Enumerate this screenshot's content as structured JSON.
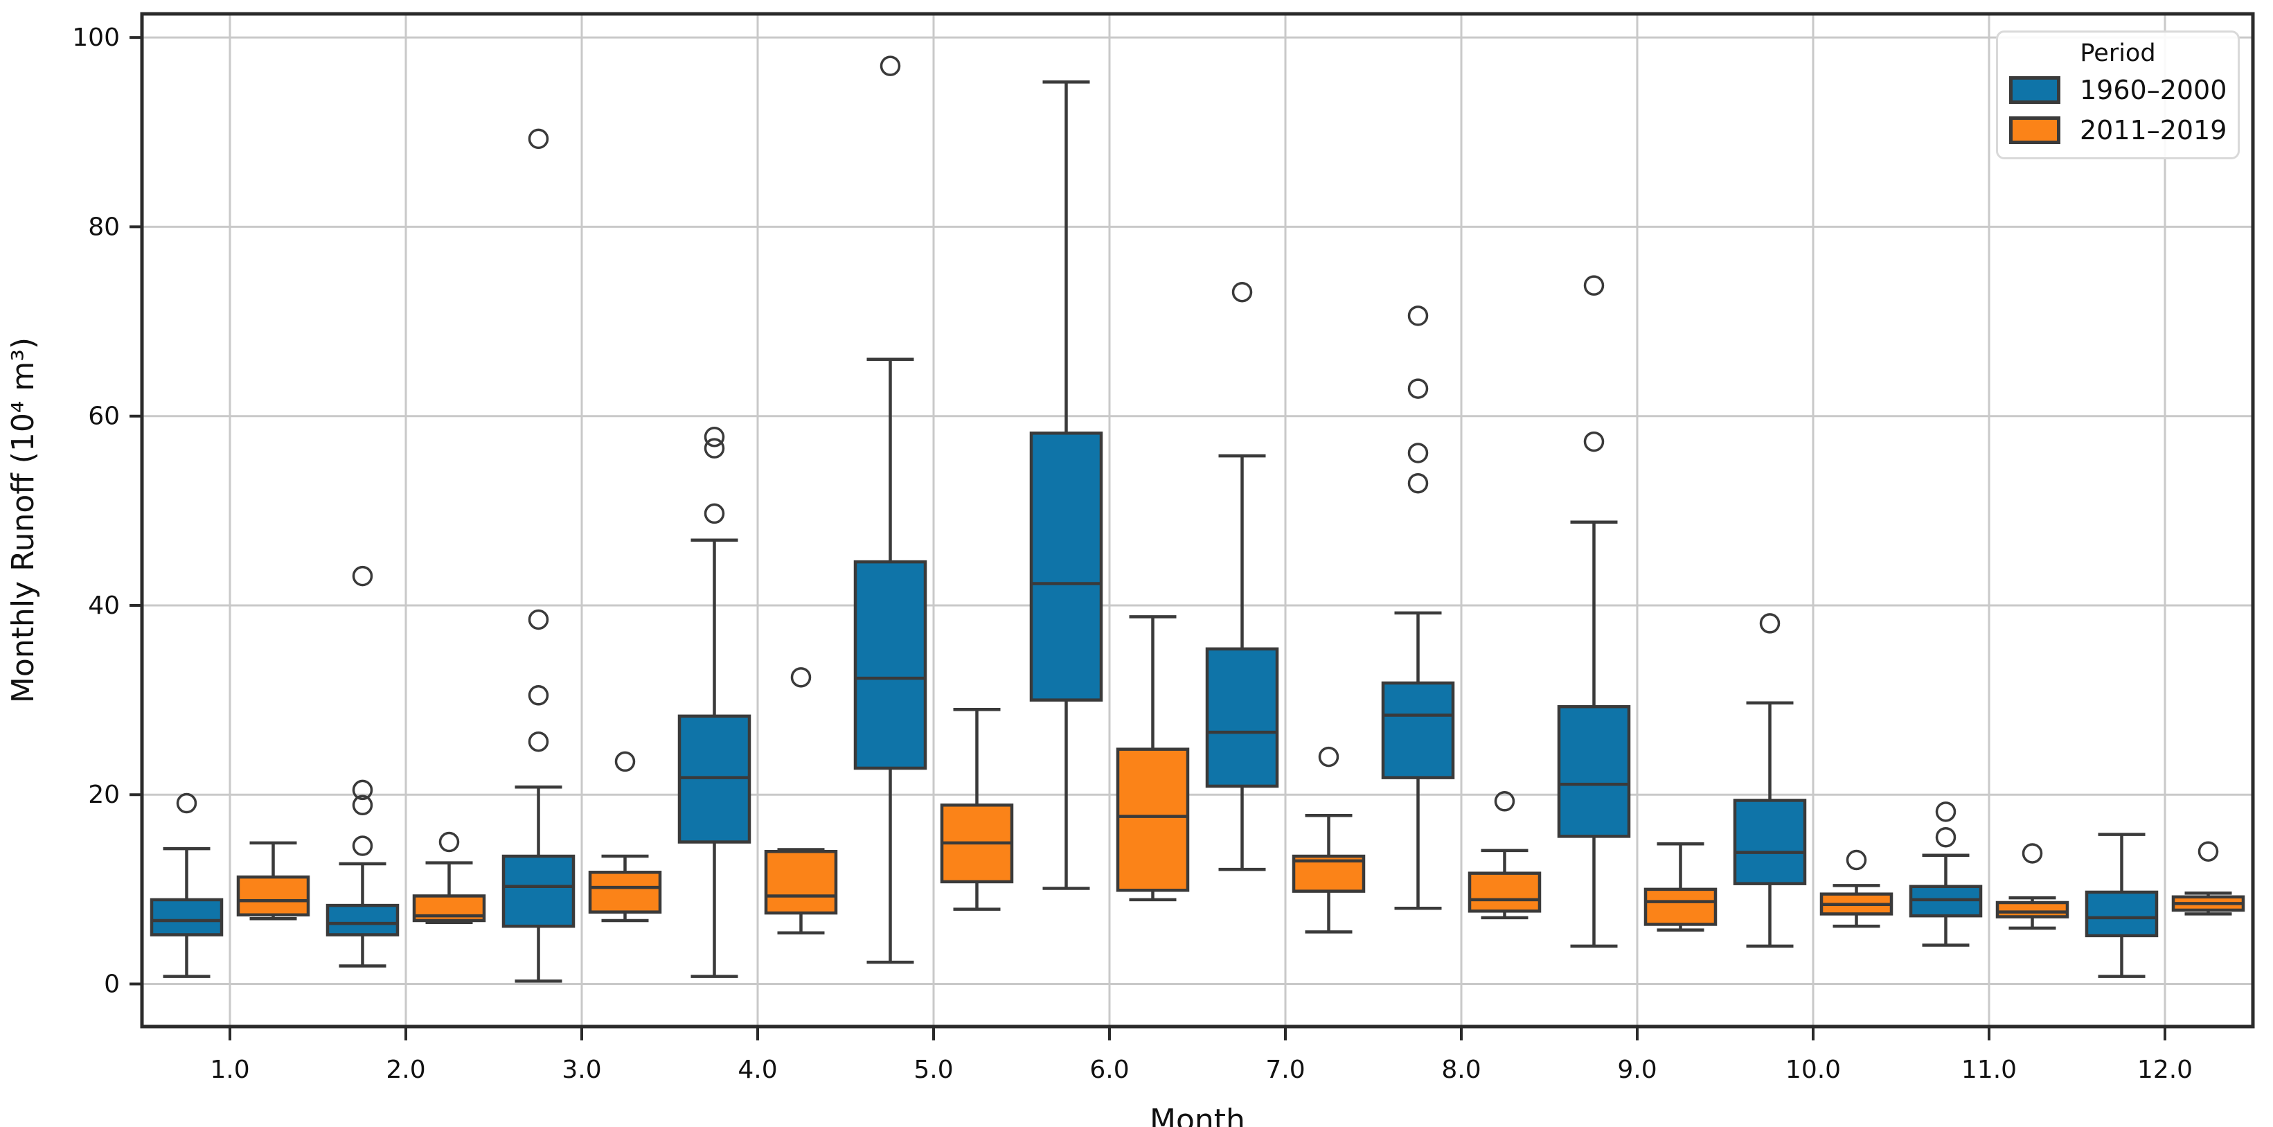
{
  "chart_data": {
    "type": "boxplot",
    "title": "",
    "xlabel": "Month",
    "ylabel": "Monthly Runoff (10⁴ m³)",
    "x_tick_labels": [
      "1.0",
      "2.0",
      "3.0",
      "4.0",
      "5.0",
      "6.0",
      "7.0",
      "8.0",
      "9.0",
      "10.0",
      "11.0",
      "12.0"
    ],
    "y_ticks": [
      0,
      20,
      40,
      60,
      80,
      100
    ],
    "ylim": [
      -4.5,
      102.5
    ],
    "grid": true,
    "background_color": "#ffffff",
    "grid_color": "#c9c9c9",
    "spine_color": "#2a2a2a",
    "box_edge_color": "#3a3a3a",
    "legend": {
      "title": "Period",
      "position": "upper right",
      "entries": [
        {
          "label": "1960–2000",
          "color": "#0f74a8"
        },
        {
          "label": "2011–2019",
          "color": "#fb8318"
        }
      ]
    },
    "series": [
      {
        "name": "1960–2000",
        "color": "#0f74a8",
        "boxes": [
          {
            "month": 1,
            "whislo": 0.8,
            "q1": 5.2,
            "med": 6.7,
            "q3": 8.9,
            "whishi": 14.3,
            "fliers": [
              19.1
            ]
          },
          {
            "month": 2,
            "whislo": 1.9,
            "q1": 5.2,
            "med": 6.4,
            "q3": 8.3,
            "whishi": 12.7,
            "fliers": [
              14.6,
              18.9,
              20.5,
              43.1
            ]
          },
          {
            "month": 3,
            "whislo": 0.3,
            "q1": 6.1,
            "med": 10.3,
            "q3": 13.5,
            "whishi": 20.8,
            "fliers": [
              25.6,
              30.5,
              38.5,
              89.3
            ]
          },
          {
            "month": 4,
            "whislo": 0.8,
            "q1": 15.0,
            "med": 21.8,
            "q3": 28.3,
            "whishi": 46.9,
            "fliers": [
              49.7,
              56.6,
              57.8
            ]
          },
          {
            "month": 5,
            "whislo": 2.3,
            "q1": 22.8,
            "med": 32.3,
            "q3": 44.6,
            "whishi": 66.0,
            "fliers": [
              97.0
            ]
          },
          {
            "month": 6,
            "whislo": 10.1,
            "q1": 30.0,
            "med": 42.3,
            "q3": 58.2,
            "whishi": 95.3,
            "fliers": []
          },
          {
            "month": 7,
            "whislo": 12.1,
            "q1": 20.9,
            "med": 26.6,
            "q3": 35.4,
            "whishi": 55.8,
            "fliers": [
              73.1
            ]
          },
          {
            "month": 8,
            "whislo": 8.0,
            "q1": 21.8,
            "med": 28.4,
            "q3": 31.8,
            "whishi": 39.2,
            "fliers": [
              52.9,
              56.1,
              62.9,
              70.6
            ]
          },
          {
            "month": 9,
            "whislo": 4.0,
            "q1": 15.6,
            "med": 21.1,
            "q3": 29.3,
            "whishi": 48.8,
            "fliers": [
              57.3,
              73.8
            ]
          },
          {
            "month": 10,
            "whislo": 4.0,
            "q1": 10.6,
            "med": 13.9,
            "q3": 19.4,
            "whishi": 29.7,
            "fliers": [
              38.1
            ]
          },
          {
            "month": 11,
            "whislo": 4.1,
            "q1": 7.2,
            "med": 8.9,
            "q3": 10.3,
            "whishi": 13.6,
            "fliers": [
              15.5,
              18.2
            ]
          },
          {
            "month": 12,
            "whislo": 0.8,
            "q1": 5.1,
            "med": 7.0,
            "q3": 9.7,
            "whishi": 15.8,
            "fliers": []
          }
        ]
      },
      {
        "name": "2011–2019",
        "color": "#fb8318",
        "boxes": [
          {
            "month": 1,
            "whislo": 6.9,
            "q1": 7.3,
            "med": 8.8,
            "q3": 11.3,
            "whishi": 14.9,
            "fliers": []
          },
          {
            "month": 2,
            "whislo": 6.5,
            "q1": 6.7,
            "med": 7.2,
            "q3": 9.3,
            "whishi": 12.8,
            "fliers": [
              15.0
            ]
          },
          {
            "month": 3,
            "whislo": 6.7,
            "q1": 7.6,
            "med": 10.2,
            "q3": 11.8,
            "whishi": 13.5,
            "fliers": [
              23.5
            ]
          },
          {
            "month": 4,
            "whislo": 5.4,
            "q1": 7.5,
            "med": 9.3,
            "q3": 14.0,
            "whishi": 14.2,
            "fliers": [
              32.4
            ]
          },
          {
            "month": 5,
            "whislo": 7.9,
            "q1": 10.8,
            "med": 14.9,
            "q3": 18.9,
            "whishi": 29.0,
            "fliers": []
          },
          {
            "month": 6,
            "whislo": 8.9,
            "q1": 9.9,
            "med": 17.7,
            "q3": 24.8,
            "whishi": 38.8,
            "fliers": []
          },
          {
            "month": 7,
            "whislo": 5.5,
            "q1": 9.8,
            "med": 13.0,
            "q3": 13.5,
            "whishi": 17.8,
            "fliers": [
              24.0
            ]
          },
          {
            "month": 8,
            "whislo": 7.0,
            "q1": 7.7,
            "med": 8.9,
            "q3": 11.7,
            "whishi": 14.1,
            "fliers": [
              19.3
            ]
          },
          {
            "month": 9,
            "whislo": 5.7,
            "q1": 6.3,
            "med": 8.7,
            "q3": 10.0,
            "whishi": 14.8,
            "fliers": []
          },
          {
            "month": 10,
            "whislo": 6.1,
            "q1": 7.4,
            "med": 8.4,
            "q3": 9.5,
            "whishi": 10.4,
            "fliers": [
              13.1
            ]
          },
          {
            "month": 11,
            "whislo": 5.9,
            "q1": 7.1,
            "med": 7.6,
            "q3": 8.6,
            "whishi": 9.1,
            "fliers": [
              13.8
            ]
          },
          {
            "month": 12,
            "whislo": 7.4,
            "q1": 7.8,
            "med": 8.5,
            "q3": 9.2,
            "whishi": 9.6,
            "fliers": [
              14.0
            ]
          }
        ]
      }
    ]
  }
}
